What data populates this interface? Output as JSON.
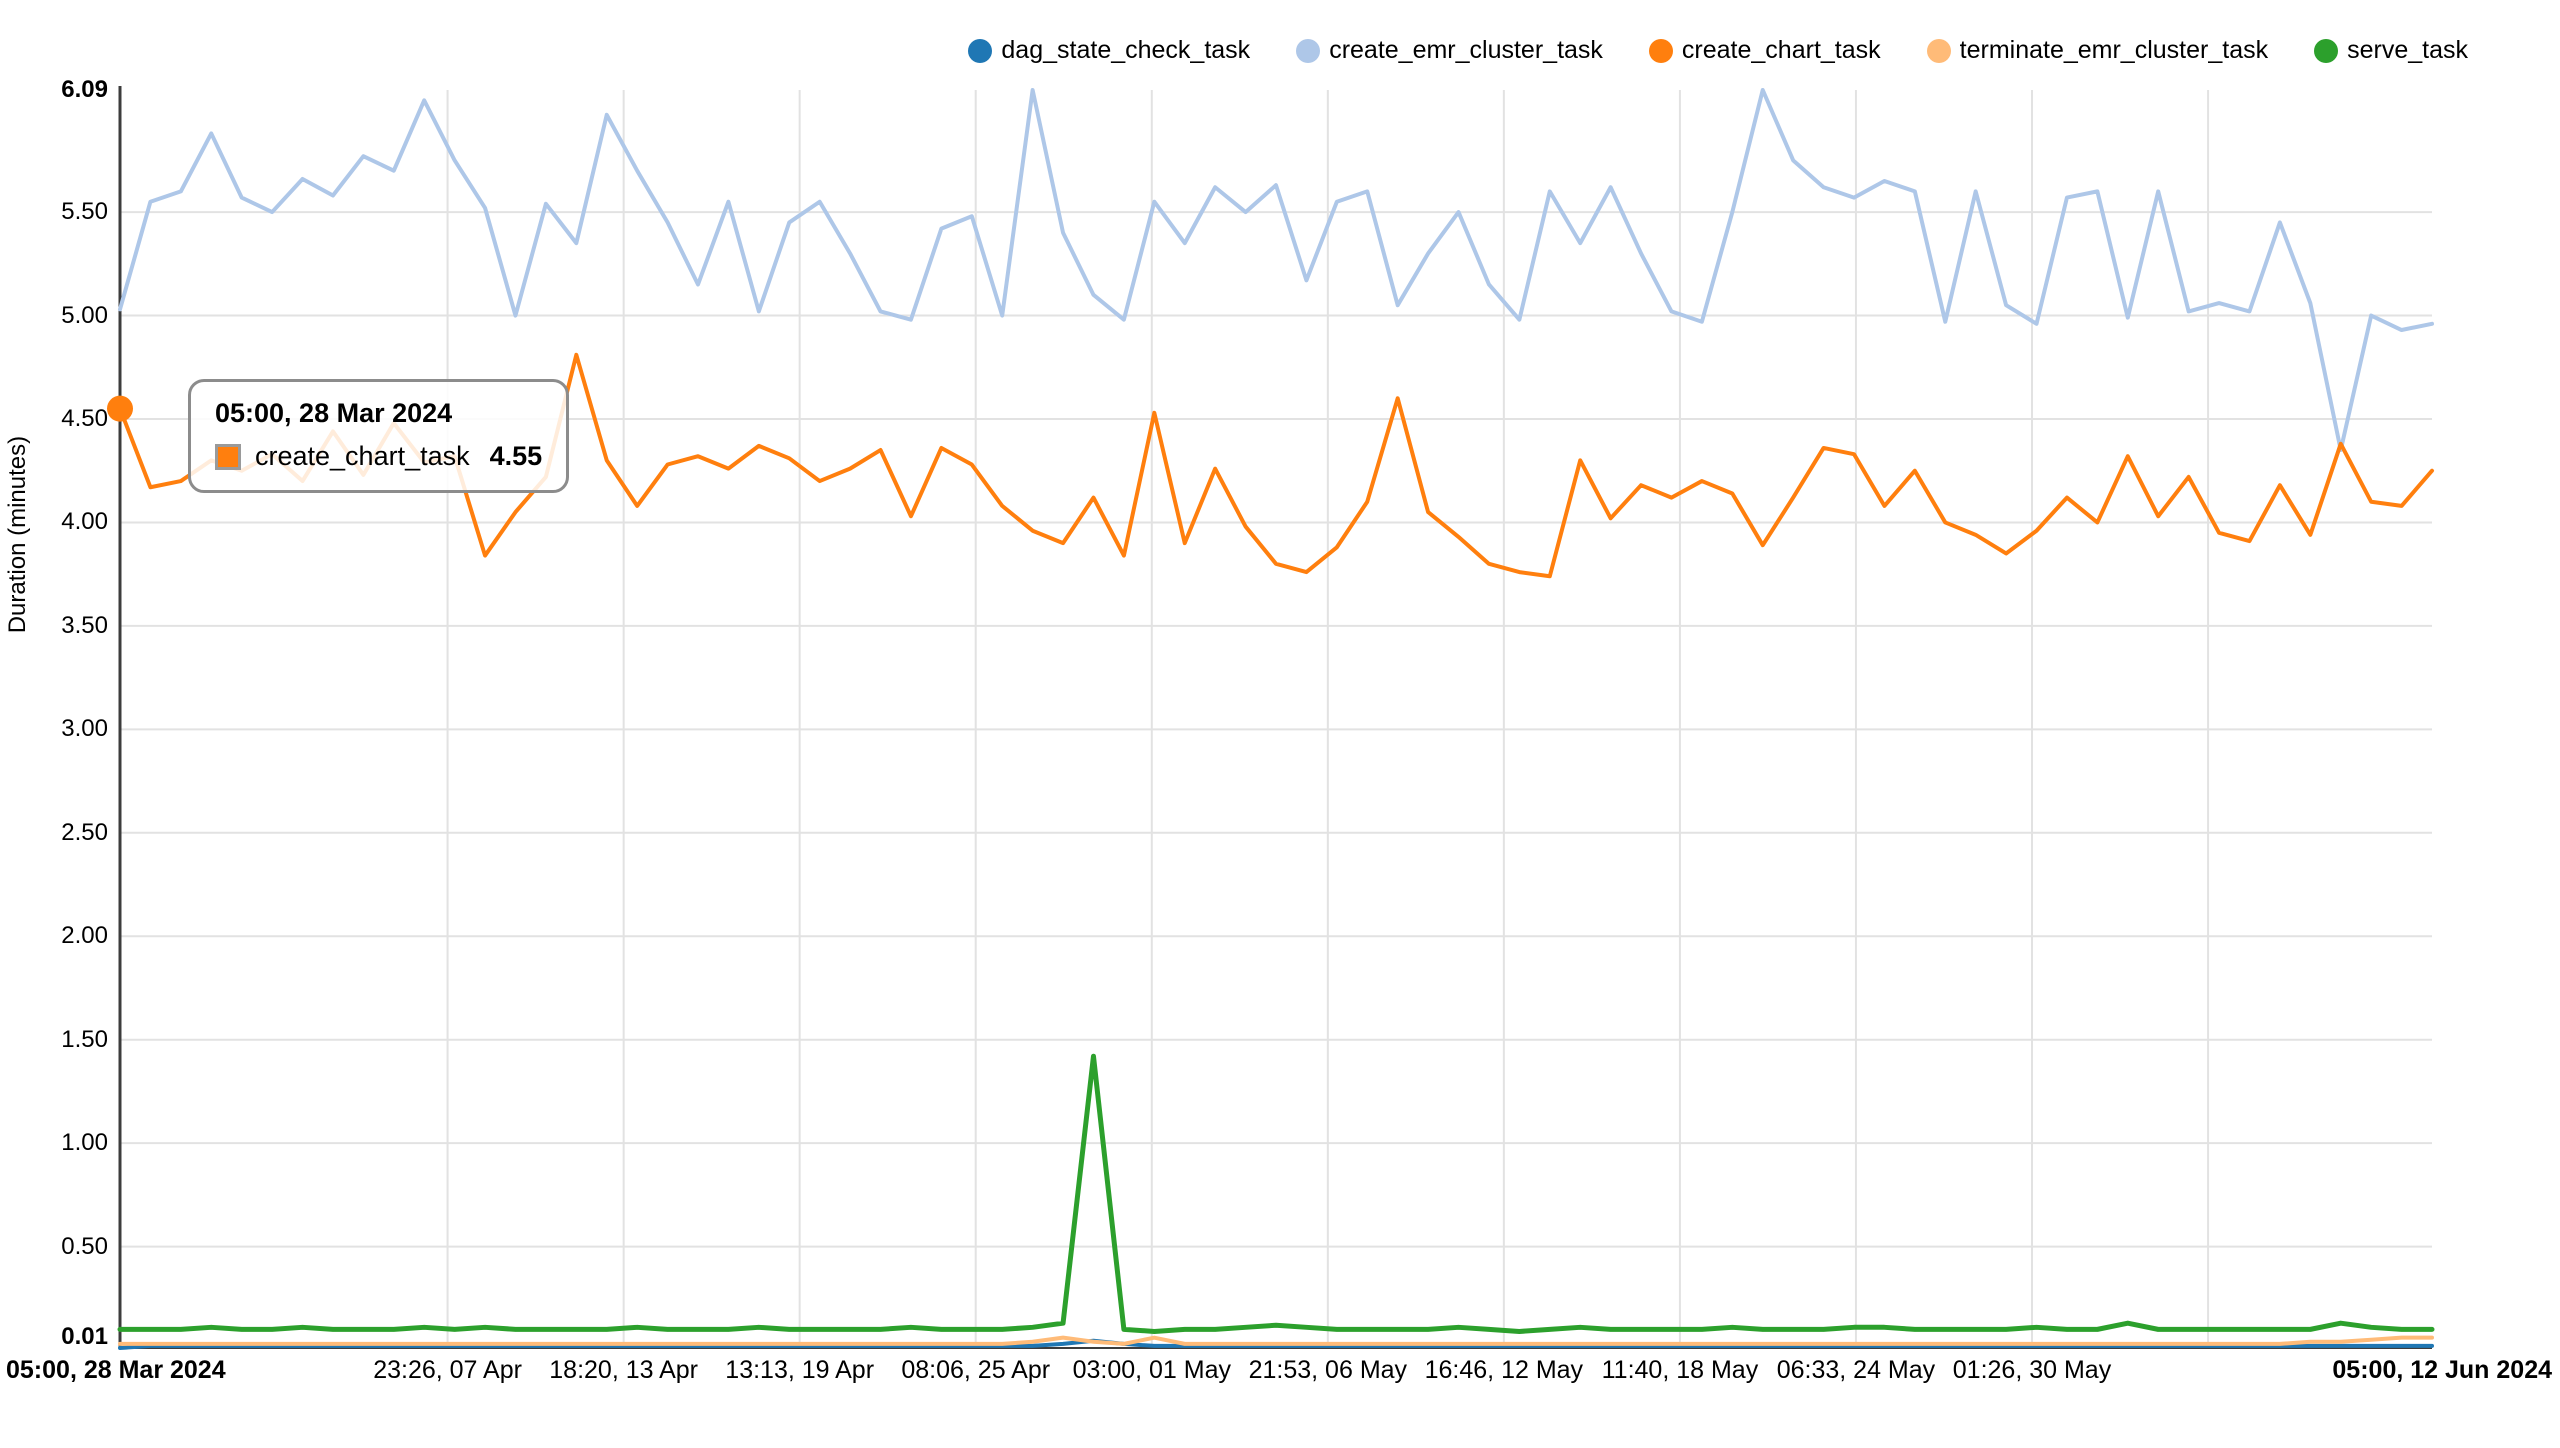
{
  "legend": {
    "items": [
      {
        "label": "dag_state_check_task",
        "color": "#1f77b4"
      },
      {
        "label": "create_emr_cluster_task",
        "color": "#aec7e8"
      },
      {
        "label": "create_chart_task",
        "color": "#ff7f0e"
      },
      {
        "label": "terminate_emr_cluster_task",
        "color": "#ffbb78"
      },
      {
        "label": "serve_task",
        "color": "#2ca02c"
      }
    ]
  },
  "tooltip": {
    "title": "05:00, 28 Mar 2024",
    "series_label": "create_chart_task",
    "value": "4.55",
    "swatch_color": "#ff7f0e"
  },
  "chart_data": {
    "type": "line",
    "title": "",
    "xlabel": "",
    "ylabel": "Duration (minutes)",
    "ylim": [
      0.01,
      6.09
    ],
    "x_domain_days": [
      0,
      76
    ],
    "grid": true,
    "legend_position": "top-right",
    "grid_color": "#e2e2e2",
    "axis_color": "#3c3c3c",
    "y_ticks": [
      {
        "label": "6.09",
        "value": 6.09,
        "bold": true,
        "grid": false
      },
      {
        "label": "5.50",
        "value": 5.5,
        "bold": false,
        "grid": true
      },
      {
        "label": "5.00",
        "value": 5.0,
        "bold": false,
        "grid": true
      },
      {
        "label": "4.50",
        "value": 4.5,
        "bold": false,
        "grid": true
      },
      {
        "label": "4.00",
        "value": 4.0,
        "bold": false,
        "grid": true
      },
      {
        "label": "3.50",
        "value": 3.5,
        "bold": false,
        "grid": true
      },
      {
        "label": "3.00",
        "value": 3.0,
        "bold": false,
        "grid": true
      },
      {
        "label": "2.50",
        "value": 2.5,
        "bold": false,
        "grid": true
      },
      {
        "label": "2.00",
        "value": 2.0,
        "bold": false,
        "grid": true
      },
      {
        "label": "1.50",
        "value": 1.5,
        "bold": false,
        "grid": true
      },
      {
        "label": "1.00",
        "value": 1.0,
        "bold": false,
        "grid": true
      },
      {
        "label": "0.50",
        "value": 0.5,
        "bold": false,
        "grid": true
      },
      {
        "label": "0.01",
        "value": 0.01,
        "bold": true,
        "grid": false
      }
    ],
    "x_ticks": [
      {
        "label": "05:00, 28 Mar 2024",
        "day": 0,
        "bold": true,
        "grid": false,
        "align": "left"
      },
      {
        "label": "23:26, 07 Apr",
        "day": 10.768,
        "bold": false,
        "grid": true,
        "align": "center"
      },
      {
        "label": "18:20, 13 Apr",
        "day": 16.556,
        "bold": false,
        "grid": true,
        "align": "center"
      },
      {
        "label": "13:13, 19 Apr",
        "day": 22.342,
        "bold": false,
        "grid": true,
        "align": "center"
      },
      {
        "label": "08:06, 25 Apr",
        "day": 28.129,
        "bold": false,
        "grid": true,
        "align": "center"
      },
      {
        "label": "03:00, 01 May",
        "day": 33.917,
        "bold": false,
        "grid": true,
        "align": "center"
      },
      {
        "label": "21:53, 06 May",
        "day": 39.704,
        "bold": false,
        "grid": true,
        "align": "center"
      },
      {
        "label": "16:46, 12 May",
        "day": 45.49,
        "bold": false,
        "grid": true,
        "align": "center"
      },
      {
        "label": "11:40, 18 May",
        "day": 51.278,
        "bold": false,
        "grid": true,
        "align": "center"
      },
      {
        "label": "06:33, 24 May",
        "day": 57.064,
        "bold": false,
        "grid": true,
        "align": "center"
      },
      {
        "label": "01:26, 30 May",
        "day": 62.851,
        "bold": false,
        "grid": true,
        "align": "center"
      },
      {
        "label": "",
        "day": 68.639,
        "bold": false,
        "grid": true,
        "align": "center"
      },
      {
        "label": "05:00, 12 Jun 2024",
        "day": 76,
        "bold": true,
        "grid": false,
        "align": "right"
      }
    ],
    "draw_order": [
      1,
      2,
      0,
      3,
      4
    ],
    "series": [
      {
        "name": "dag_state_check_task",
        "color": "#1f77b4",
        "width": 4,
        "values": [
          0.01,
          0.02,
          0.02,
          0.02,
          0.02,
          0.02,
          0.02,
          0.02,
          0.02,
          0.02,
          0.02,
          0.02,
          0.02,
          0.02,
          0.02,
          0.02,
          0.02,
          0.02,
          0.02,
          0.02,
          0.02,
          0.02,
          0.02,
          0.02,
          0.02,
          0.02,
          0.02,
          0.02,
          0.02,
          0.02,
          0.02,
          0.03,
          0.045,
          0.03,
          0.02,
          0.02,
          0.02,
          0.02,
          0.02,
          0.02,
          0.02,
          0.02,
          0.02,
          0.02,
          0.02,
          0.02,
          0.02,
          0.02,
          0.02,
          0.02,
          0.02,
          0.02,
          0.02,
          0.02,
          0.02,
          0.02,
          0.02,
          0.02,
          0.02,
          0.02,
          0.02,
          0.02,
          0.02,
          0.02,
          0.02,
          0.02,
          0.02,
          0.02,
          0.02,
          0.02,
          0.02,
          0.02,
          0.02,
          0.02,
          0.02,
          0.02,
          0.02
        ]
      },
      {
        "name": "create_emr_cluster_task",
        "color": "#aec7e8",
        "width": 4,
        "values": [
          5.03,
          5.55,
          5.6,
          5.88,
          5.57,
          5.5,
          5.66,
          5.58,
          5.77,
          5.7,
          6.04,
          5.75,
          5.52,
          5.0,
          5.54,
          5.35,
          5.97,
          5.7,
          5.45,
          5.15,
          5.55,
          5.02,
          5.45,
          5.55,
          5.3,
          5.02,
          4.98,
          5.42,
          5.48,
          5.0,
          6.09,
          5.4,
          5.1,
          4.98,
          5.55,
          5.35,
          5.62,
          5.5,
          5.63,
          5.17,
          5.55,
          5.6,
          5.05,
          5.3,
          5.5,
          5.15,
          4.98,
          5.6,
          5.35,
          5.62,
          5.3,
          5.02,
          4.97,
          5.5,
          6.09,
          5.75,
          5.62,
          5.57,
          5.65,
          5.6,
          4.97,
          5.6,
          5.05,
          4.96,
          5.57,
          5.6,
          4.99,
          5.6,
          5.02,
          5.06,
          5.02,
          5.45,
          5.06,
          4.35,
          5.0,
          4.93,
          4.96
        ]
      },
      {
        "name": "create_chart_task",
        "color": "#ff7f0e",
        "width": 4,
        "marker_first_point": true,
        "values": [
          4.55,
          4.17,
          4.2,
          4.3,
          4.25,
          4.33,
          4.2,
          4.44,
          4.23,
          4.48,
          4.29,
          4.32,
          3.84,
          4.05,
          4.22,
          4.81,
          4.3,
          4.08,
          4.28,
          4.32,
          4.26,
          4.37,
          4.31,
          4.2,
          4.26,
          4.35,
          4.03,
          4.36,
          4.28,
          4.08,
          3.96,
          3.9,
          4.12,
          3.84,
          4.53,
          3.9,
          4.26,
          3.98,
          3.8,
          3.76,
          3.88,
          4.1,
          4.6,
          4.05,
          3.93,
          3.8,
          3.76,
          3.74,
          4.3,
          4.02,
          4.18,
          4.12,
          4.2,
          4.14,
          3.89,
          4.12,
          4.36,
          4.33,
          4.08,
          4.25,
          4.0,
          3.94,
          3.85,
          3.96,
          4.12,
          4.0,
          4.32,
          4.03,
          4.22,
          3.95,
          3.91,
          4.18,
          3.94,
          4.38,
          4.1,
          4.08,
          4.25
        ]
      },
      {
        "name": "terminate_emr_cluster_task",
        "color": "#ffbb78",
        "width": 4,
        "values": [
          0.03,
          0.03,
          0.03,
          0.03,
          0.03,
          0.03,
          0.03,
          0.03,
          0.03,
          0.03,
          0.03,
          0.03,
          0.03,
          0.03,
          0.03,
          0.03,
          0.03,
          0.03,
          0.03,
          0.03,
          0.03,
          0.03,
          0.03,
          0.03,
          0.03,
          0.03,
          0.03,
          0.03,
          0.03,
          0.03,
          0.04,
          0.06,
          0.04,
          0.03,
          0.06,
          0.03,
          0.03,
          0.03,
          0.03,
          0.03,
          0.03,
          0.03,
          0.03,
          0.03,
          0.03,
          0.03,
          0.03,
          0.03,
          0.03,
          0.03,
          0.03,
          0.03,
          0.03,
          0.03,
          0.03,
          0.03,
          0.03,
          0.03,
          0.03,
          0.03,
          0.03,
          0.03,
          0.03,
          0.03,
          0.03,
          0.03,
          0.03,
          0.03,
          0.03,
          0.03,
          0.03,
          0.03,
          0.04,
          0.04,
          0.05,
          0.06,
          0.06
        ]
      },
      {
        "name": "serve_task",
        "color": "#2ca02c",
        "width": 5,
        "values": [
          0.1,
          0.1,
          0.1,
          0.11,
          0.1,
          0.1,
          0.11,
          0.1,
          0.1,
          0.1,
          0.11,
          0.1,
          0.11,
          0.1,
          0.1,
          0.1,
          0.1,
          0.11,
          0.1,
          0.1,
          0.1,
          0.11,
          0.1,
          0.1,
          0.1,
          0.1,
          0.11,
          0.1,
          0.1,
          0.1,
          0.11,
          0.13,
          1.42,
          0.1,
          0.09,
          0.1,
          0.1,
          0.11,
          0.12,
          0.11,
          0.1,
          0.1,
          0.1,
          0.1,
          0.11,
          0.1,
          0.09,
          0.1,
          0.11,
          0.1,
          0.1,
          0.1,
          0.1,
          0.11,
          0.1,
          0.1,
          0.1,
          0.11,
          0.11,
          0.1,
          0.1,
          0.1,
          0.1,
          0.11,
          0.1,
          0.1,
          0.13,
          0.1,
          0.1,
          0.1,
          0.1,
          0.1,
          0.1,
          0.13,
          0.11,
          0.1,
          0.1
        ]
      }
    ]
  }
}
